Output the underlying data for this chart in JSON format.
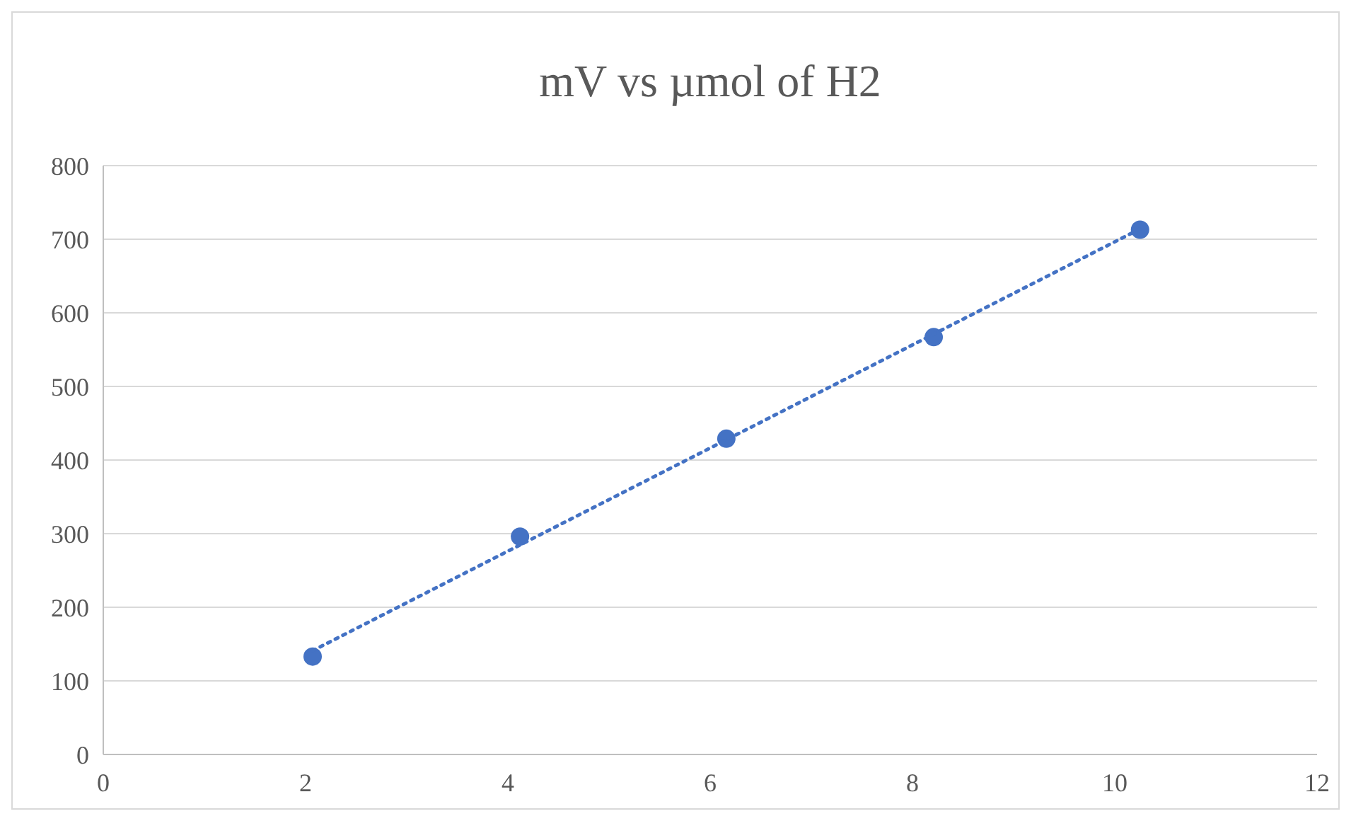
{
  "chart_data": {
    "type": "scatter",
    "title": "mV vs µmol of H2",
    "marker": "circle",
    "grid": "y",
    "xlim": [
      0,
      12
    ],
    "xticks": [
      0,
      2,
      4,
      6,
      8,
      10,
      12
    ],
    "ylim": [
      0,
      800
    ],
    "yticks": [
      0,
      100,
      200,
      300,
      400,
      500,
      600,
      700,
      800
    ],
    "series": [
      {
        "color": "#4472c4",
        "x": [
          2.07,
          4.12,
          6.16,
          8.21,
          10.25
        ],
        "values": [
          133,
          296,
          429,
          567,
          713
        ]
      },
      {
        "type": "line",
        "color": "#4472c4",
        "line_style": "dotted",
        "marker": "none",
        "x": [
          2.07,
          10.25
        ],
        "values": [
          141,
          714
        ]
      }
    ]
  }
}
